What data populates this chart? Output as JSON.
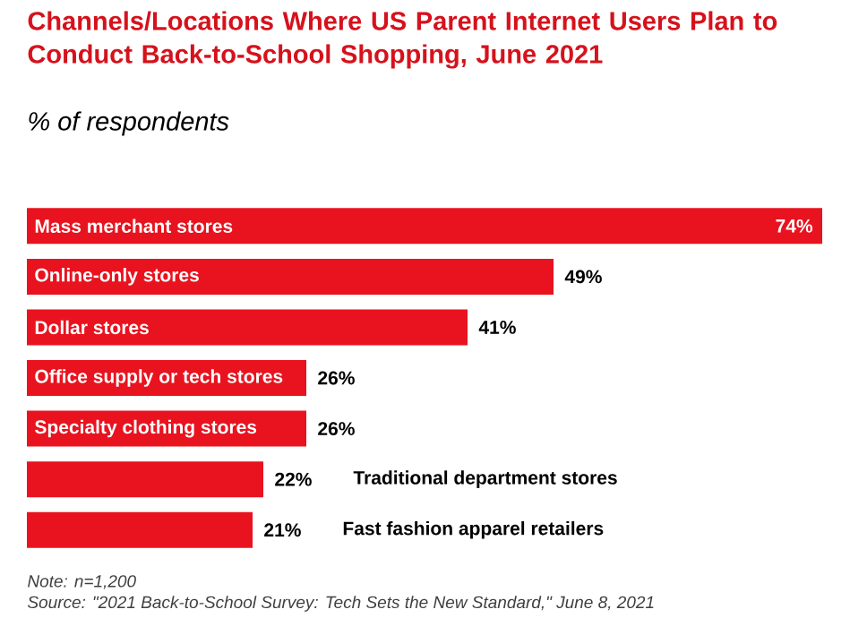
{
  "chart_data": {
    "type": "bar",
    "orientation": "horizontal",
    "title": "Channels/Locations Where US Parent Internet Users Plan to Conduct Back-to-School Shopping, June 2021",
    "subtitle": "% of respondents",
    "categories": [
      "Mass merchant stores",
      "Online-only stores",
      "Dollar stores",
      "Office supply or tech stores",
      "Specialty clothing stores",
      "Traditional department stores",
      "Fast fashion apparel retailers"
    ],
    "values": [
      74,
      49,
      41,
      26,
      26,
      22,
      21
    ],
    "value_labels": [
      "74%",
      "49%",
      "41%",
      "26%",
      "26%",
      "22%",
      "21%"
    ],
    "color": "#e8131f",
    "annotations": [
      "Note: n=1,200",
      "Source: \"2021 Back-to-School Survey: Tech Sets the New Standard,\" June 8, 2021"
    ]
  }
}
